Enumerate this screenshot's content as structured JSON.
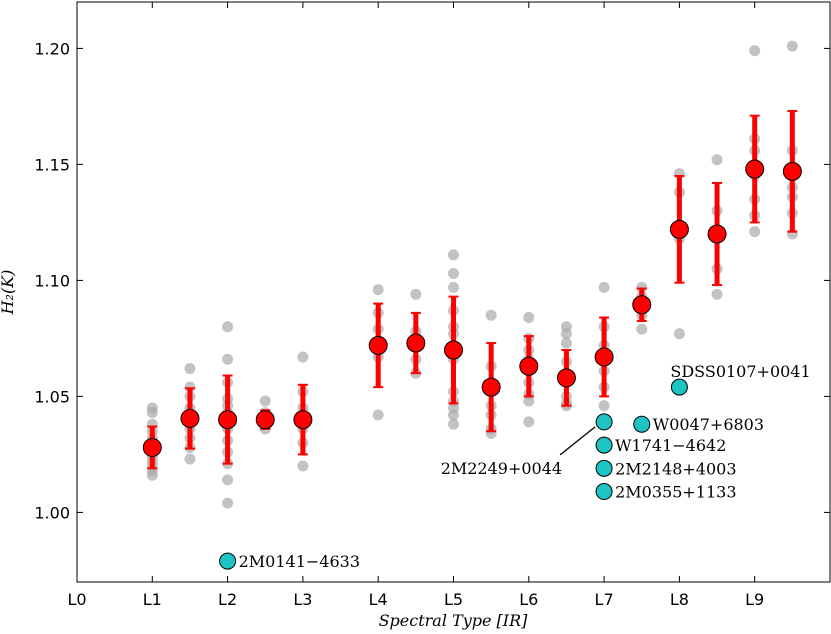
{
  "chart_data": {
    "type": "scatter",
    "xlabel": "Spectral Type [IR]",
    "ylabel": "H₂(K)",
    "xlim": [
      0,
      10
    ],
    "ylim": [
      0.97,
      1.22
    ],
    "x_ticks": [
      {
        "v": 0,
        "label": "L0"
      },
      {
        "v": 1,
        "label": "L1"
      },
      {
        "v": 2,
        "label": "L2"
      },
      {
        "v": 3,
        "label": "L3"
      },
      {
        "v": 4,
        "label": "L4"
      },
      {
        "v": 5,
        "label": "L5"
      },
      {
        "v": 6,
        "label": "L6"
      },
      {
        "v": 7,
        "label": "L7"
      },
      {
        "v": 8,
        "label": "L8"
      },
      {
        "v": 9,
        "label": "L9"
      }
    ],
    "y_ticks": [
      {
        "v": 1.0,
        "label": "1.00"
      },
      {
        "v": 1.05,
        "label": "1.05"
      },
      {
        "v": 1.1,
        "label": "1.10"
      },
      {
        "v": 1.15,
        "label": "1.15"
      },
      {
        "v": 1.2,
        "label": "1.20"
      }
    ],
    "individual_points": [
      {
        "x": 1.0,
        "ys": [
          1.045,
          1.043,
          1.038,
          1.035,
          1.032,
          1.03,
          1.028,
          1.026,
          1.024,
          1.022,
          1.02,
          1.018,
          1.016
        ]
      },
      {
        "x": 1.5,
        "ys": [
          1.062,
          1.054,
          1.05,
          1.045,
          1.04,
          1.036,
          1.032,
          1.028,
          1.023
        ]
      },
      {
        "x": 2.0,
        "ys": [
          1.08,
          1.066,
          1.056,
          1.049,
          1.046,
          1.043,
          1.04,
          1.036,
          1.031,
          1.026,
          1.021,
          1.014,
          1.004
        ]
      },
      {
        "x": 2.5,
        "ys": [
          1.048,
          1.043,
          1.039,
          1.036
        ]
      },
      {
        "x": 3.0,
        "ys": [
          1.067,
          1.052,
          1.045,
          1.04,
          1.036,
          1.03,
          1.02
        ]
      },
      {
        "x": 4.0,
        "ys": [
          1.096,
          1.086,
          1.079,
          1.072,
          1.067,
          1.042
        ]
      },
      {
        "x": 4.5,
        "ys": [
          1.094,
          1.078,
          1.073,
          1.066,
          1.06
        ]
      },
      {
        "x": 5.0,
        "ys": [
          1.111,
          1.103,
          1.097,
          1.087,
          1.08,
          1.077,
          1.072,
          1.066,
          1.052,
          1.048,
          1.045,
          1.042,
          1.038
        ]
      },
      {
        "x": 5.5,
        "ys": [
          1.085,
          1.063,
          1.052,
          1.046,
          1.042,
          1.036,
          1.034
        ]
      },
      {
        "x": 6.0,
        "ys": [
          1.084,
          1.075,
          1.07,
          1.066,
          1.061,
          1.056,
          1.051,
          1.048,
          1.039
        ]
      },
      {
        "x": 6.5,
        "ys": [
          1.08,
          1.077,
          1.073,
          1.065,
          1.06,
          1.056,
          1.05,
          1.047,
          1.046
        ]
      },
      {
        "x": 7.0,
        "ys": [
          1.097,
          1.08,
          1.072,
          1.067,
          1.061,
          1.054,
          1.046
        ]
      },
      {
        "x": 7.5,
        "ys": [
          1.097,
          1.093,
          1.088,
          1.085,
          1.079
        ]
      },
      {
        "x": 8.0,
        "ys": [
          1.146,
          1.138,
          1.124,
          1.118,
          1.077
        ]
      },
      {
        "x": 8.5,
        "ys": [
          1.152,
          1.13,
          1.12,
          1.105,
          1.094
        ]
      },
      {
        "x": 9.0,
        "ys": [
          1.199,
          1.161,
          1.156,
          1.15,
          1.145,
          1.135,
          1.128,
          1.121
        ]
      },
      {
        "x": 9.5,
        "ys": [
          1.201,
          1.156,
          1.145,
          1.14,
          1.136,
          1.129,
          1.12
        ]
      }
    ],
    "means": [
      {
        "x": 1.0,
        "y": 1.028,
        "err": 0.009
      },
      {
        "x": 1.5,
        "y": 1.0405,
        "err": 0.013
      },
      {
        "x": 2.0,
        "y": 1.04,
        "err": 0.019
      },
      {
        "x": 2.5,
        "y": 1.04,
        "err": 0.004
      },
      {
        "x": 3.0,
        "y": 1.04,
        "err": 0.015
      },
      {
        "x": 4.0,
        "y": 1.072,
        "err": 0.018
      },
      {
        "x": 4.5,
        "y": 1.073,
        "err": 0.013
      },
      {
        "x": 5.0,
        "y": 1.07,
        "err": 0.023
      },
      {
        "x": 5.5,
        "y": 1.054,
        "err": 0.019
      },
      {
        "x": 6.0,
        "y": 1.063,
        "err": 0.013
      },
      {
        "x": 6.5,
        "y": 1.058,
        "err": 0.012
      },
      {
        "x": 7.0,
        "y": 1.067,
        "err": 0.017
      },
      {
        "x": 7.5,
        "y": 1.0895,
        "err": 0.007
      },
      {
        "x": 8.0,
        "y": 1.122,
        "err": 0.023
      },
      {
        "x": 8.5,
        "y": 1.12,
        "err": 0.022
      },
      {
        "x": 9.0,
        "y": 1.148,
        "err": 0.023
      },
      {
        "x": 9.5,
        "y": 1.147,
        "err": 0.026
      }
    ],
    "highlighted": [
      {
        "x": 2.0,
        "y": 0.979,
        "label": "2M0141−4633",
        "label_pos": "right"
      },
      {
        "x": 7.0,
        "y": 1.039,
        "label": "2M2249+0044",
        "label_pos": "leader-below-left"
      },
      {
        "x": 7.0,
        "y": 1.029,
        "label": "W1741−4642",
        "label_pos": "right"
      },
      {
        "x": 7.0,
        "y": 1.019,
        "label": "2M2148+4003",
        "label_pos": "right"
      },
      {
        "x": 7.0,
        "y": 1.009,
        "label": "2M0355+1133",
        "label_pos": "right"
      },
      {
        "x": 7.5,
        "y": 1.038,
        "label": "W0047+6803",
        "label_pos": "right"
      },
      {
        "x": 8.0,
        "y": 1.054,
        "label": "SDSS0107+0041",
        "label_pos": "above-right"
      }
    ],
    "colors": {
      "individual": "#aaaaaa",
      "mean_fill": "#ff0000",
      "error_bar": "#ff0000",
      "highlight_fill": "#1ec4c4",
      "marker_edge": "#000000"
    },
    "grid": false
  }
}
